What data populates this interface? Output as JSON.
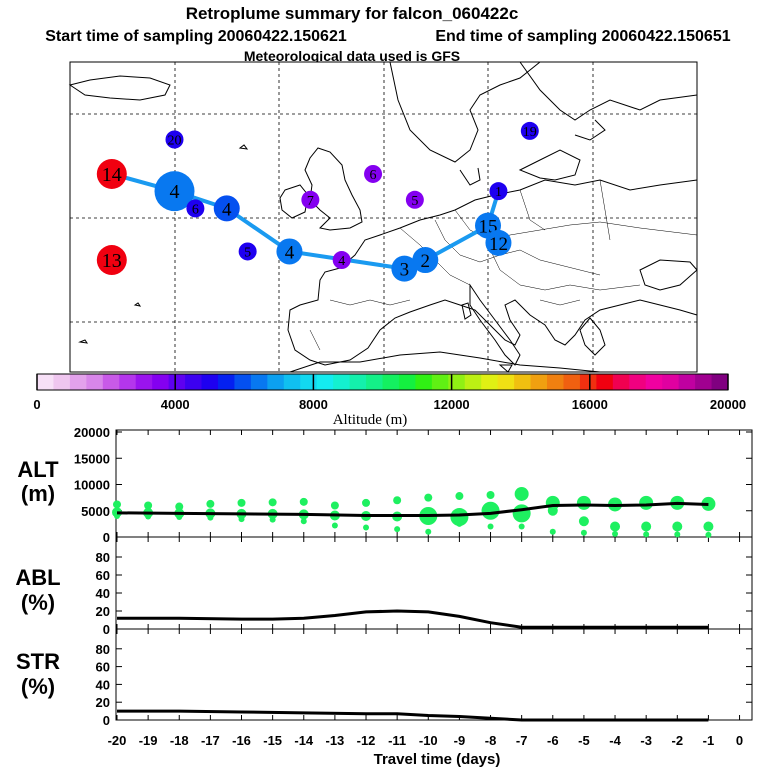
{
  "header": {
    "title": "Retroplume summary for falcon_060422c",
    "start_label": "Start time of sampling 20060422.150621",
    "end_label": "End time of sampling 20060422.150651",
    "met_label": "Meteorological data used is GFS"
  },
  "chart_data": [
    {
      "type": "scatter",
      "name": "retroplume-map",
      "description_axes": "geographic map (Europe / North Atlantic)",
      "track_color": "#1a9af0",
      "clusters": [
        {
          "label": "14",
          "altitude_m": 16500,
          "lonlat": [
            -26,
            57
          ]
        },
        {
          "label": "13",
          "altitude_m": 16500,
          "lonlat": [
            -26,
            47
          ]
        },
        {
          "label": "4",
          "altitude_m": 6500,
          "lonlat": [
            -20,
            55
          ]
        },
        {
          "label": "20",
          "altitude_m": 4800,
          "lonlat": [
            -20,
            61
          ]
        },
        {
          "label": "6",
          "altitude_m": 5000,
          "lonlat": [
            -18,
            53
          ]
        },
        {
          "label": "4",
          "altitude_m": 6000,
          "lonlat": [
            -15,
            53
          ]
        },
        {
          "label": "5",
          "altitude_m": 4800,
          "lonlat": [
            -13,
            48
          ]
        },
        {
          "label": "4",
          "altitude_m": 6500,
          "lonlat": [
            -9,
            48
          ]
        },
        {
          "label": "7",
          "altitude_m": 3800,
          "lonlat": [
            -7,
            54
          ]
        },
        {
          "label": "6",
          "altitude_m": 3800,
          "lonlat": [
            -1,
            57
          ]
        },
        {
          "label": "5",
          "altitude_m": 3800,
          "lonlat": [
            3,
            54
          ]
        },
        {
          "label": "4",
          "altitude_m": 3800,
          "lonlat": [
            -4,
            47
          ]
        },
        {
          "label": "3",
          "altitude_m": 6500,
          "lonlat": [
            2,
            46
          ]
        },
        {
          "label": "2",
          "altitude_m": 6500,
          "lonlat": [
            4,
            47
          ]
        },
        {
          "label": "15",
          "altitude_m": 6500,
          "lonlat": [
            10,
            51
          ]
        },
        {
          "label": "12",
          "altitude_m": 6500,
          "lonlat": [
            11,
            49
          ]
        },
        {
          "label": "1",
          "altitude_m": 5000,
          "lonlat": [
            11,
            55
          ]
        },
        {
          "label": "19",
          "altitude_m": 4800,
          "lonlat": [
            14,
            62
          ]
        }
      ]
    },
    {
      "type": "colorbar",
      "name": "altitude-colorbar",
      "title": "Altitude (m)",
      "range": [
        0,
        20000
      ],
      "tick_labels": [
        "0",
        "4000",
        "8000",
        "12000",
        "16000",
        "20000"
      ],
      "colors": [
        "#f7e0f7",
        "#efc6ef",
        "#e3a2ec",
        "#d886ea",
        "#c85ae8",
        "#b436ec",
        "#9a14ee",
        "#8400f0",
        "#5e00f0",
        "#3c00f0",
        "#1e00f0",
        "#0420f0",
        "#0450f0",
        "#0878f0",
        "#0ca0f0",
        "#10c0f0",
        "#12d8f0",
        "#14ecf0",
        "#14f0d0",
        "#14f0ac",
        "#14f088",
        "#14f060",
        "#14f040",
        "#30f014",
        "#60f014",
        "#90f014",
        "#bcf014",
        "#e0f014",
        "#f0e014",
        "#f0c010",
        "#f0a010",
        "#f08010",
        "#f06010",
        "#f03010",
        "#f00010",
        "#f00050",
        "#f00080",
        "#f000a0",
        "#e000a0",
        "#c000a0",
        "#a00090",
        "#800080"
      ]
    },
    {
      "type": "scatter",
      "name": "alt-panel",
      "ylabel": "ALT (m)",
      "ylim": [
        0,
        20000
      ],
      "yticks": [
        "0",
        "5000",
        "10000",
        "15000",
        "20000"
      ],
      "mean_line": {
        "x": [
          -20,
          -18,
          -16,
          -14,
          -12,
          -10,
          -9,
          -8,
          -7,
          -6,
          -5,
          -4,
          -3,
          -2,
          -1
        ],
        "y": [
          4600,
          4500,
          4400,
          4300,
          4100,
          4100,
          4200,
          4500,
          5200,
          6000,
          6100,
          6000,
          6100,
          6400,
          6200
        ]
      },
      "points": [
        {
          "x": -20,
          "y": [
            6200,
            4700,
            4000
          ]
        },
        {
          "x": -19,
          "y": [
            6000,
            4600,
            3900
          ]
        },
        {
          "x": -18,
          "y": [
            5800,
            4500,
            3800
          ]
        },
        {
          "x": -17,
          "y": [
            6300,
            4500,
            3700
          ]
        },
        {
          "x": -16,
          "y": [
            6500,
            4400,
            3400
          ]
        },
        {
          "x": -15,
          "y": [
            6600,
            4400,
            3300
          ]
        },
        {
          "x": -14,
          "y": [
            6700,
            4300,
            3000
          ]
        },
        {
          "x": -13,
          "y": [
            6000,
            4100,
            2200
          ]
        },
        {
          "x": -12,
          "y": [
            6500,
            4000,
            1800
          ]
        },
        {
          "x": -11,
          "y": [
            7000,
            3900,
            1500
          ]
        },
        {
          "x": -10,
          "y": [
            7500,
            4000,
            1000
          ]
        },
        {
          "x": -9,
          "y": [
            7800,
            3800,
            2500
          ]
        },
        {
          "x": -8,
          "y": [
            8000,
            5000,
            2000
          ]
        },
        {
          "x": -7,
          "y": [
            8200,
            4500,
            2000
          ]
        },
        {
          "x": -6,
          "y": [
            6500,
            5000,
            1000
          ]
        },
        {
          "x": -5,
          "y": [
            6500,
            3000,
            800
          ]
        },
        {
          "x": -4,
          "y": [
            6200,
            2000,
            600
          ]
        },
        {
          "x": -3,
          "y": [
            6500,
            2000,
            500
          ]
        },
        {
          "x": -2,
          "y": [
            6500,
            2000,
            500
          ]
        },
        {
          "x": -1,
          "y": [
            6300,
            2000,
            400
          ]
        }
      ]
    },
    {
      "type": "line",
      "name": "abl-panel",
      "ylabel": "ABL (%)",
      "ylim": [
        0,
        100
      ],
      "yticks": [
        "0",
        "20",
        "40",
        "60",
        "80"
      ],
      "x": [
        -20,
        -18,
        -16,
        -15,
        -14,
        -13,
        -12,
        -11,
        -10,
        -9,
        -8,
        -7,
        -6,
        -5,
        -4,
        -3,
        -2,
        -1
      ],
      "y": [
        12,
        12,
        11,
        11,
        12,
        15,
        19,
        20,
        19,
        14,
        7,
        2,
        2,
        2,
        2,
        2,
        2,
        2
      ]
    },
    {
      "type": "line",
      "name": "str-panel",
      "ylabel": "STR (%)",
      "ylim": [
        0,
        100
      ],
      "yticks": [
        "0",
        "20",
        "40",
        "60",
        "80"
      ],
      "x": [
        -20,
        -18,
        -16,
        -14,
        -12,
        -11,
        -10,
        -9,
        -8,
        -7,
        -6,
        -5,
        -4,
        -3,
        -2,
        -1
      ],
      "y": [
        10,
        10,
        9,
        8,
        7,
        7,
        5,
        4,
        2,
        0,
        0,
        0,
        0,
        0,
        0,
        0
      ]
    }
  ],
  "xaxis": {
    "xlabel": "Travel time (days)",
    "tick_labels": [
      "-20",
      "-19",
      "-18",
      "-17",
      "-16",
      "-15",
      "-14",
      "-13",
      "-12",
      "-11",
      "-10",
      "-9",
      "-8",
      "-7",
      "-6",
      "-5",
      "-4",
      "-3",
      "-2",
      "-1",
      "0"
    ]
  },
  "panel_labels": {
    "alt_top": "ALT",
    "alt_bot": "(m)",
    "abl_top": "ABL",
    "abl_bot": "(%)",
    "str_top": "STR",
    "str_bot": "(%)"
  }
}
